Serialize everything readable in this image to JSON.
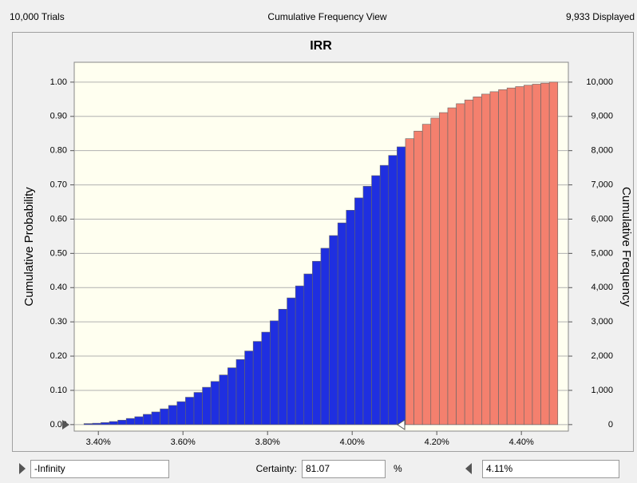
{
  "header": {
    "trials": "10,000 Trials",
    "view": "Cumulative Frequency View",
    "displayed": "9,933 Displayed"
  },
  "chart_data": {
    "type": "histogram",
    "title": "IRR",
    "ylabel": "Cumulative Probability",
    "y2label": "Cumulative Frequency",
    "bins": [
      3.366,
      3.386,
      3.406,
      3.426,
      3.446,
      3.466,
      3.486,
      3.506,
      3.526,
      3.546,
      3.566,
      3.586,
      3.606,
      3.626,
      3.646,
      3.666,
      3.686,
      3.706,
      3.726,
      3.746,
      3.766,
      3.786,
      3.806,
      3.826,
      3.846,
      3.866,
      3.886,
      3.906,
      3.926,
      3.946,
      3.966,
      3.986,
      4.006,
      4.026,
      4.046,
      4.066,
      4.086,
      4.106,
      4.126,
      4.146,
      4.166,
      4.186,
      4.206,
      4.226,
      4.246,
      4.266,
      4.286,
      4.306,
      4.326,
      4.346,
      4.366,
      4.386,
      4.406,
      4.426,
      4.446,
      4.466,
      4.486
    ],
    "values": [
      0.003,
      0.004,
      0.006,
      0.009,
      0.013,
      0.018,
      0.023,
      0.03,
      0.037,
      0.046,
      0.056,
      0.067,
      0.08,
      0.094,
      0.109,
      0.126,
      0.145,
      0.166,
      0.19,
      0.215,
      0.243,
      0.27,
      0.303,
      0.337,
      0.37,
      0.405,
      0.44,
      0.477,
      0.515,
      0.552,
      0.589,
      0.626,
      0.662,
      0.696,
      0.727,
      0.757,
      0.786,
      0.811,
      0.835,
      0.857,
      0.877,
      0.895,
      0.911,
      0.925,
      0.937,
      0.948,
      0.957,
      0.965,
      0.972,
      0.978,
      0.983,
      0.987,
      0.991,
      0.994,
      0.997,
      1.0
    ],
    "colors": [
      "#1f2fe0",
      "#1f2fe0",
      "#1f2fe0",
      "#1f2fe0",
      "#1f2fe0",
      "#1f2fe0",
      "#1f2fe0",
      "#1f2fe0",
      "#1f2fe0",
      "#1f2fe0",
      "#1f2fe0",
      "#1f2fe0",
      "#1f2fe0",
      "#1f2fe0",
      "#1f2fe0",
      "#1f2fe0",
      "#1f2fe0",
      "#1f2fe0",
      "#1f2fe0",
      "#1f2fe0",
      "#1f2fe0",
      "#1f2fe0",
      "#1f2fe0",
      "#1f2fe0",
      "#1f2fe0",
      "#1f2fe0",
      "#1f2fe0",
      "#1f2fe0",
      "#1f2fe0",
      "#1f2fe0",
      "#1f2fe0",
      "#1f2fe0",
      "#1f2fe0",
      "#1f2fe0",
      "#1f2fe0",
      "#1f2fe0",
      "#1f2fe0",
      "#1f2fe0",
      "#f4806e",
      "#f4806e",
      "#f4806e",
      "#f4806e",
      "#f4806e",
      "#f4806e",
      "#f4806e",
      "#f4806e",
      "#f4806e",
      "#f4806e",
      "#f4806e",
      "#f4806e",
      "#f4806e",
      "#f4806e",
      "#f4806e",
      "#f4806e",
      "#f4806e",
      "#f4806e"
    ],
    "xlim": [
      3.343,
      4.511
    ],
    "xticks": [
      {
        "value": 3.4,
        "label": "3.40%"
      },
      {
        "value": 3.6,
        "label": "3.60%"
      },
      {
        "value": 3.8,
        "label": "3.80%"
      },
      {
        "value": 4.0,
        "label": "4.00%"
      },
      {
        "value": 4.2,
        "label": "4.20%"
      },
      {
        "value": 4.4,
        "label": "4.40%"
      }
    ],
    "ylim": [
      -0.019,
      1.058
    ],
    "yticks": [
      {
        "value": 0,
        "label": "0.00"
      },
      {
        "value": 0.1,
        "label": "0.10"
      },
      {
        "value": 0.2,
        "label": "0.20"
      },
      {
        "value": 0.3,
        "label": "0.30"
      },
      {
        "value": 0.4,
        "label": "0.40"
      },
      {
        "value": 0.5,
        "label": "0.50"
      },
      {
        "value": 0.6,
        "label": "0.60"
      },
      {
        "value": 0.7,
        "label": "0.70"
      },
      {
        "value": 0.8,
        "label": "0.80"
      },
      {
        "value": 0.9,
        "label": "0.90"
      },
      {
        "value": 1,
        "label": "1.00"
      }
    ],
    "y2lim": [
      -190,
      10580
    ],
    "y2ticks": [
      0,
      {
        "value": 1000,
        "label": "1,000"
      },
      {
        "value": 2000,
        "label": "2,000"
      },
      {
        "value": 3000,
        "label": "3,000"
      },
      {
        "value": 4000,
        "label": "4,000"
      },
      {
        "value": 5000,
        "label": "5,000"
      },
      {
        "value": 6000,
        "label": "6,000"
      },
      {
        "value": 7000,
        "label": "7,000"
      },
      {
        "value": 8000,
        "label": "8,000"
      },
      {
        "value": 9000,
        "label": "9,000"
      },
      {
        "value": 10000,
        "label": "10,000"
      }
    ],
    "grid": true
  },
  "footer": {
    "lower": "-Infinity",
    "certainty_label": "Certainty:",
    "certainty": "81.07",
    "unit": "%",
    "upper": "4.11%"
  }
}
